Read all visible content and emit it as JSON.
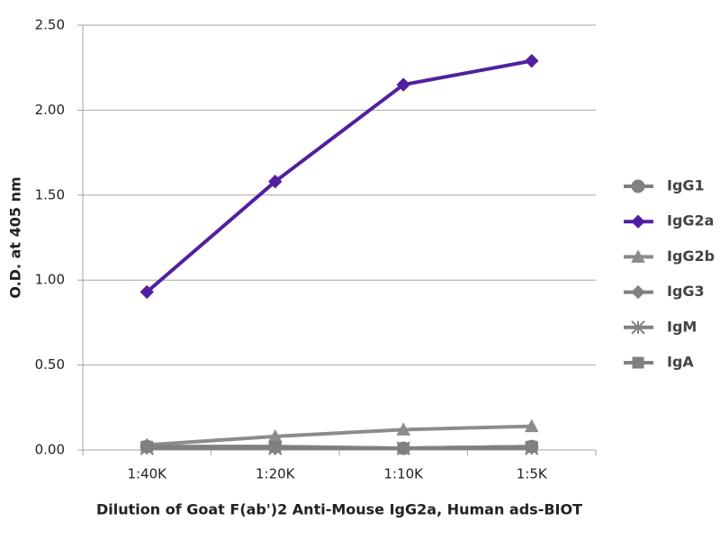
{
  "chart_data": {
    "type": "line",
    "x_label": "Dilution of Goat F(ab')2 Anti-Mouse IgG2a, Human ads-BIOT",
    "y_label": "O.D. at 405 nm",
    "categories": [
      "1:40K",
      "1:20K",
      "1:10K",
      "1:5K"
    ],
    "series": [
      {
        "name": "IgG1",
        "color": "#808080",
        "marker": "circle",
        "values": [
          0.02,
          0.02,
          0.01,
          0.02
        ]
      },
      {
        "name": "IgG2a",
        "color": "#5020a0",
        "marker": "diamond",
        "values": [
          0.93,
          1.58,
          2.15,
          2.29
        ]
      },
      {
        "name": "IgG2b",
        "color": "#8c8c8c",
        "marker": "triangle",
        "values": [
          0.03,
          0.08,
          0.12,
          0.14
        ]
      },
      {
        "name": "IgG3",
        "color": "#808080",
        "marker": "diamond",
        "values": [
          0.02,
          0.01,
          0.01,
          0.02
        ]
      },
      {
        "name": "IgM",
        "color": "#808080",
        "marker": "star",
        "values": [
          0.01,
          0.01,
          0.01,
          0.01
        ]
      },
      {
        "name": "IgA",
        "color": "#808080",
        "marker": "square",
        "values": [
          0.02,
          0.02,
          0.01,
          0.02
        ]
      }
    ],
    "ylim": [
      0,
      2.5
    ],
    "yticks": [
      {
        "value": 0,
        "label": "0.00"
      },
      {
        "value": 0.5,
        "label": "0.50"
      },
      {
        "value": 1,
        "label": "1.00"
      },
      {
        "value": 1.5,
        "label": "1.50"
      },
      {
        "value": 2,
        "label": "2.00"
      },
      {
        "value": 2.5,
        "label": "2.50"
      }
    ],
    "grid": true,
    "legend": "right"
  }
}
